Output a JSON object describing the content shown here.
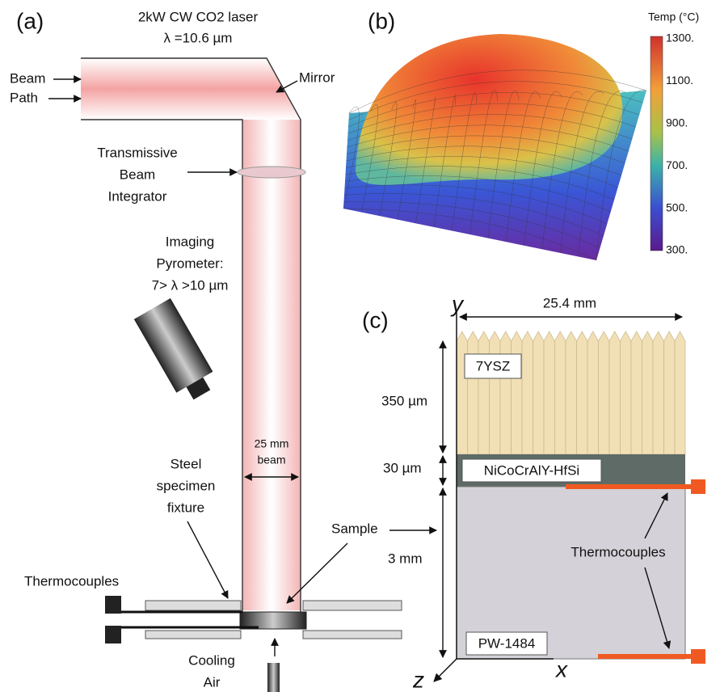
{
  "panel_a": {
    "label": "(a)",
    "laser": [
      "2kW CW CO2 laser",
      "λ =10.6 µm"
    ],
    "beam_path": [
      "Beam",
      "Path"
    ],
    "mirror": "Mirror",
    "integrator": [
      "Transmissive",
      "Beam",
      "Integrator"
    ],
    "pyrometer": [
      "Imaging",
      "Pyrometer:",
      "7> λ >10 µm"
    ],
    "beam_size": [
      "25 mm",
      "beam"
    ],
    "fixture": [
      "Steel",
      "specimen",
      "fixture"
    ],
    "sample": "Sample",
    "thermocouples": "Thermocouples",
    "cooling": [
      "Cooling",
      "Air"
    ]
  },
  "panel_b": {
    "label": "(b)",
    "colorbar_title": "Temp (°C)",
    "colorbar_labels": [
      "1300.",
      "1100.",
      "900.",
      "700.",
      "500.",
      "300."
    ]
  },
  "panel_c": {
    "label": "(c)",
    "axis_y": "y",
    "axis_x": "x",
    "axis_z": "z",
    "width": "25.4 mm",
    "topcoat": "7YSZ",
    "topcoat_thickness": "350 µm",
    "bondcoat": "NiCoCrAlY-HfSi",
    "bondcoat_thickness": "30 µm",
    "substrate": "PW-1484",
    "substrate_thickness": "3 mm",
    "thermocouples": "Thermocouples"
  }
}
